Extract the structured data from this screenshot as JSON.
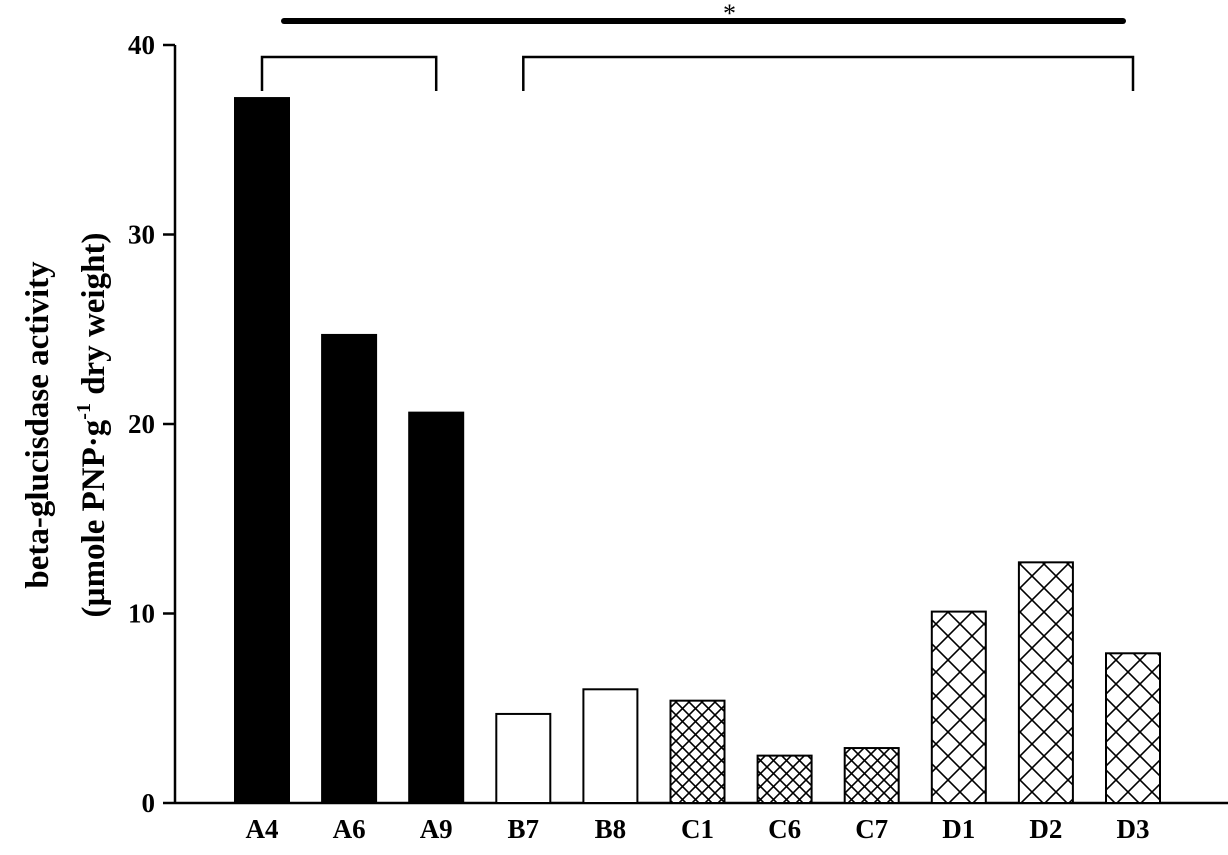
{
  "chart_data": {
    "type": "bar",
    "title": "",
    "xlabel": "",
    "ylabel_line1": "beta-glucisdase activity",
    "ylabel_line2_prefix": "(µmole PNP",
    "ylabel_line2_dot": "·",
    "ylabel_line2_g": "g",
    "ylabel_line2_sup": "-1",
    "ylabel_line2_suffix": " dry weight)",
    "ylim": [
      0,
      40
    ],
    "yticks": [
      "0",
      "10",
      "20",
      "30",
      "40"
    ],
    "ytick_values": [
      0,
      10,
      20,
      30,
      40
    ],
    "categories": [
      "A4",
      "A6",
      "A9",
      "B7",
      "B8",
      "C1",
      "C6",
      "C7",
      "D1",
      "D2",
      "D3"
    ],
    "values": [
      37.2,
      24.7,
      20.6,
      4.7,
      6.0,
      5.4,
      2.5,
      2.9,
      10.1,
      12.7,
      7.9
    ],
    "fills": [
      "solid",
      "solid",
      "solid",
      "open",
      "open",
      "crosshatch",
      "crosshatch",
      "crosshatch",
      "wide-crosshatch",
      "wide-crosshatch",
      "wide-crosshatch"
    ],
    "grid": false,
    "significance": {
      "label": "*",
      "groups": [
        [
          "A4",
          "A9"
        ],
        [
          "B7",
          "D3"
        ]
      ]
    }
  }
}
